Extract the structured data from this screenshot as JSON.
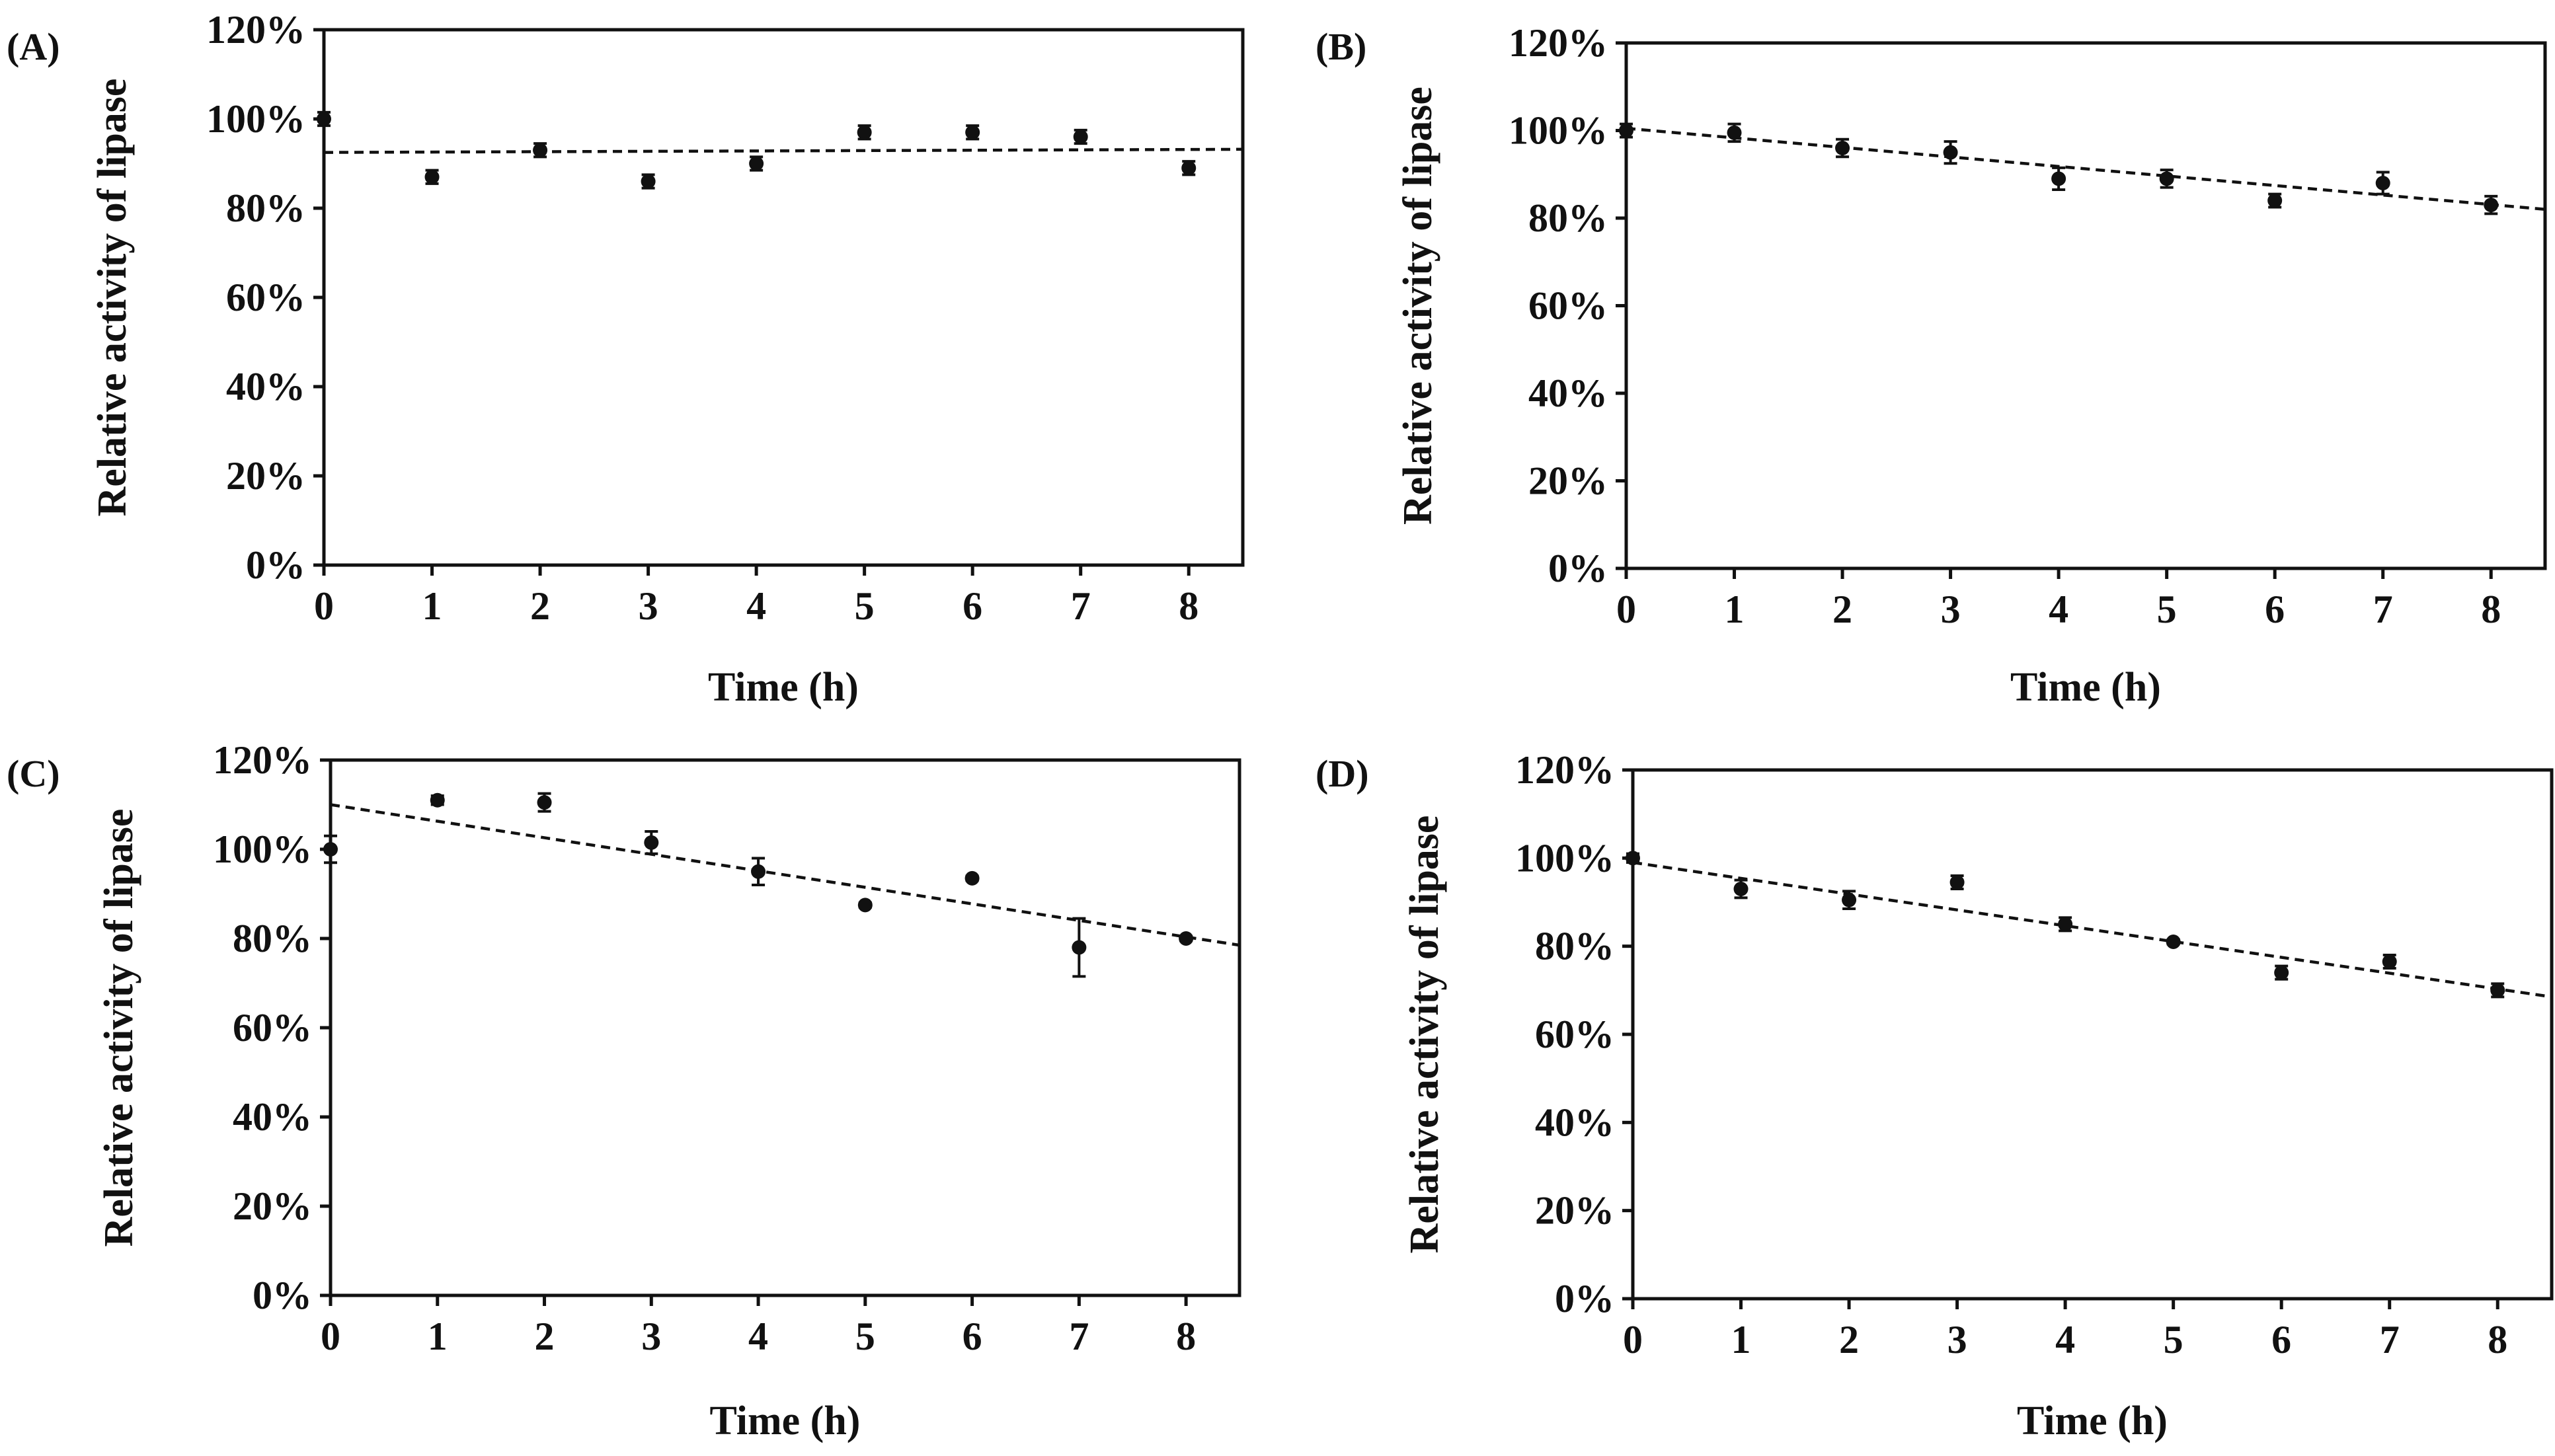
{
  "figure": {
    "panels": [
      "(A)",
      "(B)",
      "(C)",
      "(D)"
    ]
  },
  "chart_data": [
    {
      "type": "scatter",
      "panel_label": "(A)",
      "title": "",
      "xlabel": "Time (h)",
      "ylabel": "Relative activity of lipase",
      "xlim": [
        0,
        8.5
      ],
      "ylim": [
        0,
        120
      ],
      "x_ticks": [
        0,
        1,
        2,
        3,
        4,
        5,
        6,
        7,
        8
      ],
      "x_tick_labels": [
        "0",
        "1",
        "2",
        "3",
        "4",
        "5",
        "6",
        "7",
        "8"
      ],
      "y_ticks": [
        0,
        20,
        40,
        60,
        80,
        100,
        120
      ],
      "y_tick_labels": [
        "0%",
        "20%",
        "40%",
        "60%",
        "80%",
        "100%",
        "120%"
      ],
      "grid": false,
      "series": [
        {
          "name": "Relative activity",
          "x": [
            0,
            1,
            2,
            3,
            4,
            5,
            6,
            7,
            8
          ],
          "y": [
            100,
            87,
            93,
            86,
            90,
            97,
            97,
            96,
            89
          ],
          "err": [
            1.5,
            1.5,
            1.5,
            1.5,
            1.5,
            1.5,
            1.5,
            1.5,
            1.5
          ]
        }
      ],
      "trendline": {
        "style": "dashed",
        "x": [
          0,
          8.5
        ],
        "y": [
          92.5,
          93.2
        ]
      }
    },
    {
      "type": "scatter",
      "panel_label": "(B)",
      "title": "",
      "xlabel": "Time (h)",
      "ylabel": "Relative activity of lipase",
      "xlim": [
        0,
        8.5
      ],
      "ylim": [
        0,
        120
      ],
      "x_ticks": [
        0,
        1,
        2,
        3,
        4,
        5,
        6,
        7,
        8
      ],
      "x_tick_labels": [
        "0",
        "1",
        "2",
        "3",
        "4",
        "5",
        "6",
        "7",
        "8"
      ],
      "y_ticks": [
        0,
        20,
        40,
        60,
        80,
        100,
        120
      ],
      "y_tick_labels": [
        "0%",
        "20%",
        "40%",
        "60%",
        "80%",
        "100%",
        "120%"
      ],
      "grid": false,
      "series": [
        {
          "name": "Relative activity",
          "x": [
            0,
            1,
            2,
            3,
            4,
            5,
            6,
            7,
            8
          ],
          "y": [
            100,
            99.5,
            96,
            95,
            89,
            89,
            84,
            88,
            83
          ],
          "err": [
            1.5,
            2,
            2,
            2.5,
            2.5,
            2,
            1.5,
            2.5,
            2
          ]
        }
      ],
      "trendline": {
        "style": "dashed",
        "x": [
          0,
          8.5
        ],
        "y": [
          100.5,
          82
        ]
      }
    },
    {
      "type": "scatter",
      "panel_label": "(C)",
      "title": "",
      "xlabel": "Time (h)",
      "ylabel": "Relative activity of lipase",
      "xlim": [
        0,
        8.5
      ],
      "ylim": [
        0,
        120
      ],
      "x_ticks": [
        0,
        1,
        2,
        3,
        4,
        5,
        6,
        7,
        8
      ],
      "x_tick_labels": [
        "0",
        "1",
        "2",
        "3",
        "4",
        "5",
        "6",
        "7",
        "8"
      ],
      "y_ticks": [
        0,
        20,
        40,
        60,
        80,
        100,
        120
      ],
      "y_tick_labels": [
        "0%",
        "20%",
        "40%",
        "60%",
        "80%",
        "100%",
        "120%"
      ],
      "grid": false,
      "series": [
        {
          "name": "Relative activity",
          "x": [
            0,
            1,
            2,
            3,
            4,
            5,
            6,
            7,
            8
          ],
          "y": [
            100,
            111,
            110.5,
            101.5,
            95,
            87.5,
            93.5,
            78,
            80
          ],
          "err": [
            3,
            1,
            2,
            2.5,
            3,
            0.5,
            0.5,
            6.5,
            0.5
          ]
        }
      ],
      "trendline": {
        "style": "dashed",
        "x": [
          0,
          8.5
        ],
        "y": [
          110,
          78.5
        ]
      }
    },
    {
      "type": "scatter",
      "panel_label": "(D)",
      "title": "",
      "xlabel": "Time (h)",
      "ylabel": "Relative activity of lipase",
      "xlim": [
        0,
        8.5
      ],
      "ylim": [
        0,
        120
      ],
      "x_ticks": [
        0,
        1,
        2,
        3,
        4,
        5,
        6,
        7,
        8
      ],
      "x_tick_labels": [
        "0",
        "1",
        "2",
        "3",
        "4",
        "5",
        "6",
        "7",
        "8"
      ],
      "y_ticks": [
        0,
        20,
        40,
        60,
        80,
        100,
        120
      ],
      "y_tick_labels": [
        "0%",
        "20%",
        "40%",
        "60%",
        "80%",
        "100%",
        "120%"
      ],
      "grid": false,
      "series": [
        {
          "name": "Relative activity",
          "x": [
            0,
            1,
            2,
            3,
            4,
            5,
            6,
            7,
            8
          ],
          "y": [
            100,
            93,
            90.5,
            94.5,
            85,
            81,
            74,
            76.5,
            70
          ],
          "err": [
            1,
            2,
            2,
            1.5,
            1.5,
            0.5,
            1.5,
            1.5,
            1.5
          ]
        }
      ],
      "trendline": {
        "style": "dashed",
        "x": [
          0,
          8.5
        ],
        "y": [
          99,
          68.5
        ]
      }
    }
  ]
}
